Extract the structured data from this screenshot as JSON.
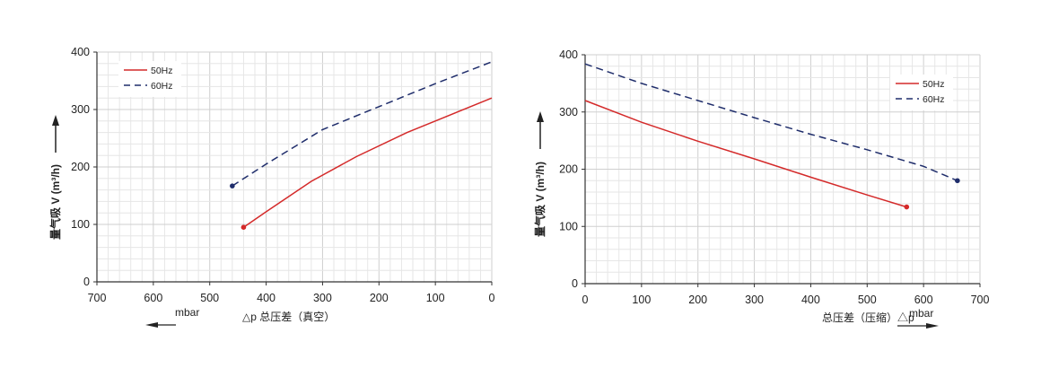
{
  "chart_data": [
    {
      "type": "line",
      "ylabel": "量气吸 V (m³/h)",
      "xlabel": "△p 总压差（真空）",
      "xunit": "mbar",
      "xlim": [
        700,
        0
      ],
      "ylim": [
        0,
        400
      ],
      "xticks": [
        "700",
        "600",
        "500",
        "400",
        "300",
        "200",
        "100",
        "0"
      ],
      "yticks": [
        "0",
        "100",
        "200",
        "300",
        "400"
      ],
      "grid": true,
      "legend": "top-left",
      "series": [
        {
          "name": "50Hz",
          "color": "#d42a2a",
          "dash": false,
          "points": [
            [
              440,
              95
            ],
            [
              400,
              122
            ],
            [
              320,
              175
            ],
            [
              240,
              218
            ],
            [
              150,
              260
            ],
            [
              100,
              280
            ],
            [
              0,
              320
            ]
          ]
        },
        {
          "name": "60Hz",
          "color": "#1f2d6b",
          "dash": true,
          "points": [
            [
              460,
              167
            ],
            [
              400,
              205
            ],
            [
              300,
              265
            ],
            [
              200,
              305
            ],
            [
              100,
              345
            ],
            [
              0,
              383
            ]
          ]
        }
      ]
    },
    {
      "type": "line",
      "ylabel": "量气吸 V (m³/h)",
      "xlabel": "总压差（压缩）△p",
      "xunit": "mbar",
      "xlim": [
        0,
        700
      ],
      "ylim": [
        0,
        400
      ],
      "xticks": [
        "0",
        "100",
        "200",
        "300",
        "400",
        "500",
        "600",
        "700"
      ],
      "yticks": [
        "0",
        "100",
        "200",
        "300",
        "400"
      ],
      "grid": true,
      "legend": "top-right",
      "series": [
        {
          "name": "50Hz",
          "color": "#d42a2a",
          "dash": false,
          "points": [
            [
              0,
              320
            ],
            [
              100,
              282
            ],
            [
              200,
              249
            ],
            [
              300,
              218
            ],
            [
              400,
              186
            ],
            [
              500,
              155
            ],
            [
              570,
              134
            ]
          ]
        },
        {
          "name": "60Hz",
          "color": "#1f2d6b",
          "dash": true,
          "points": [
            [
              0,
              384
            ],
            [
              100,
              350
            ],
            [
              200,
              320
            ],
            [
              300,
              290
            ],
            [
              400,
              261
            ],
            [
              500,
              234
            ],
            [
              600,
              205
            ],
            [
              660,
              180
            ]
          ]
        }
      ]
    }
  ]
}
